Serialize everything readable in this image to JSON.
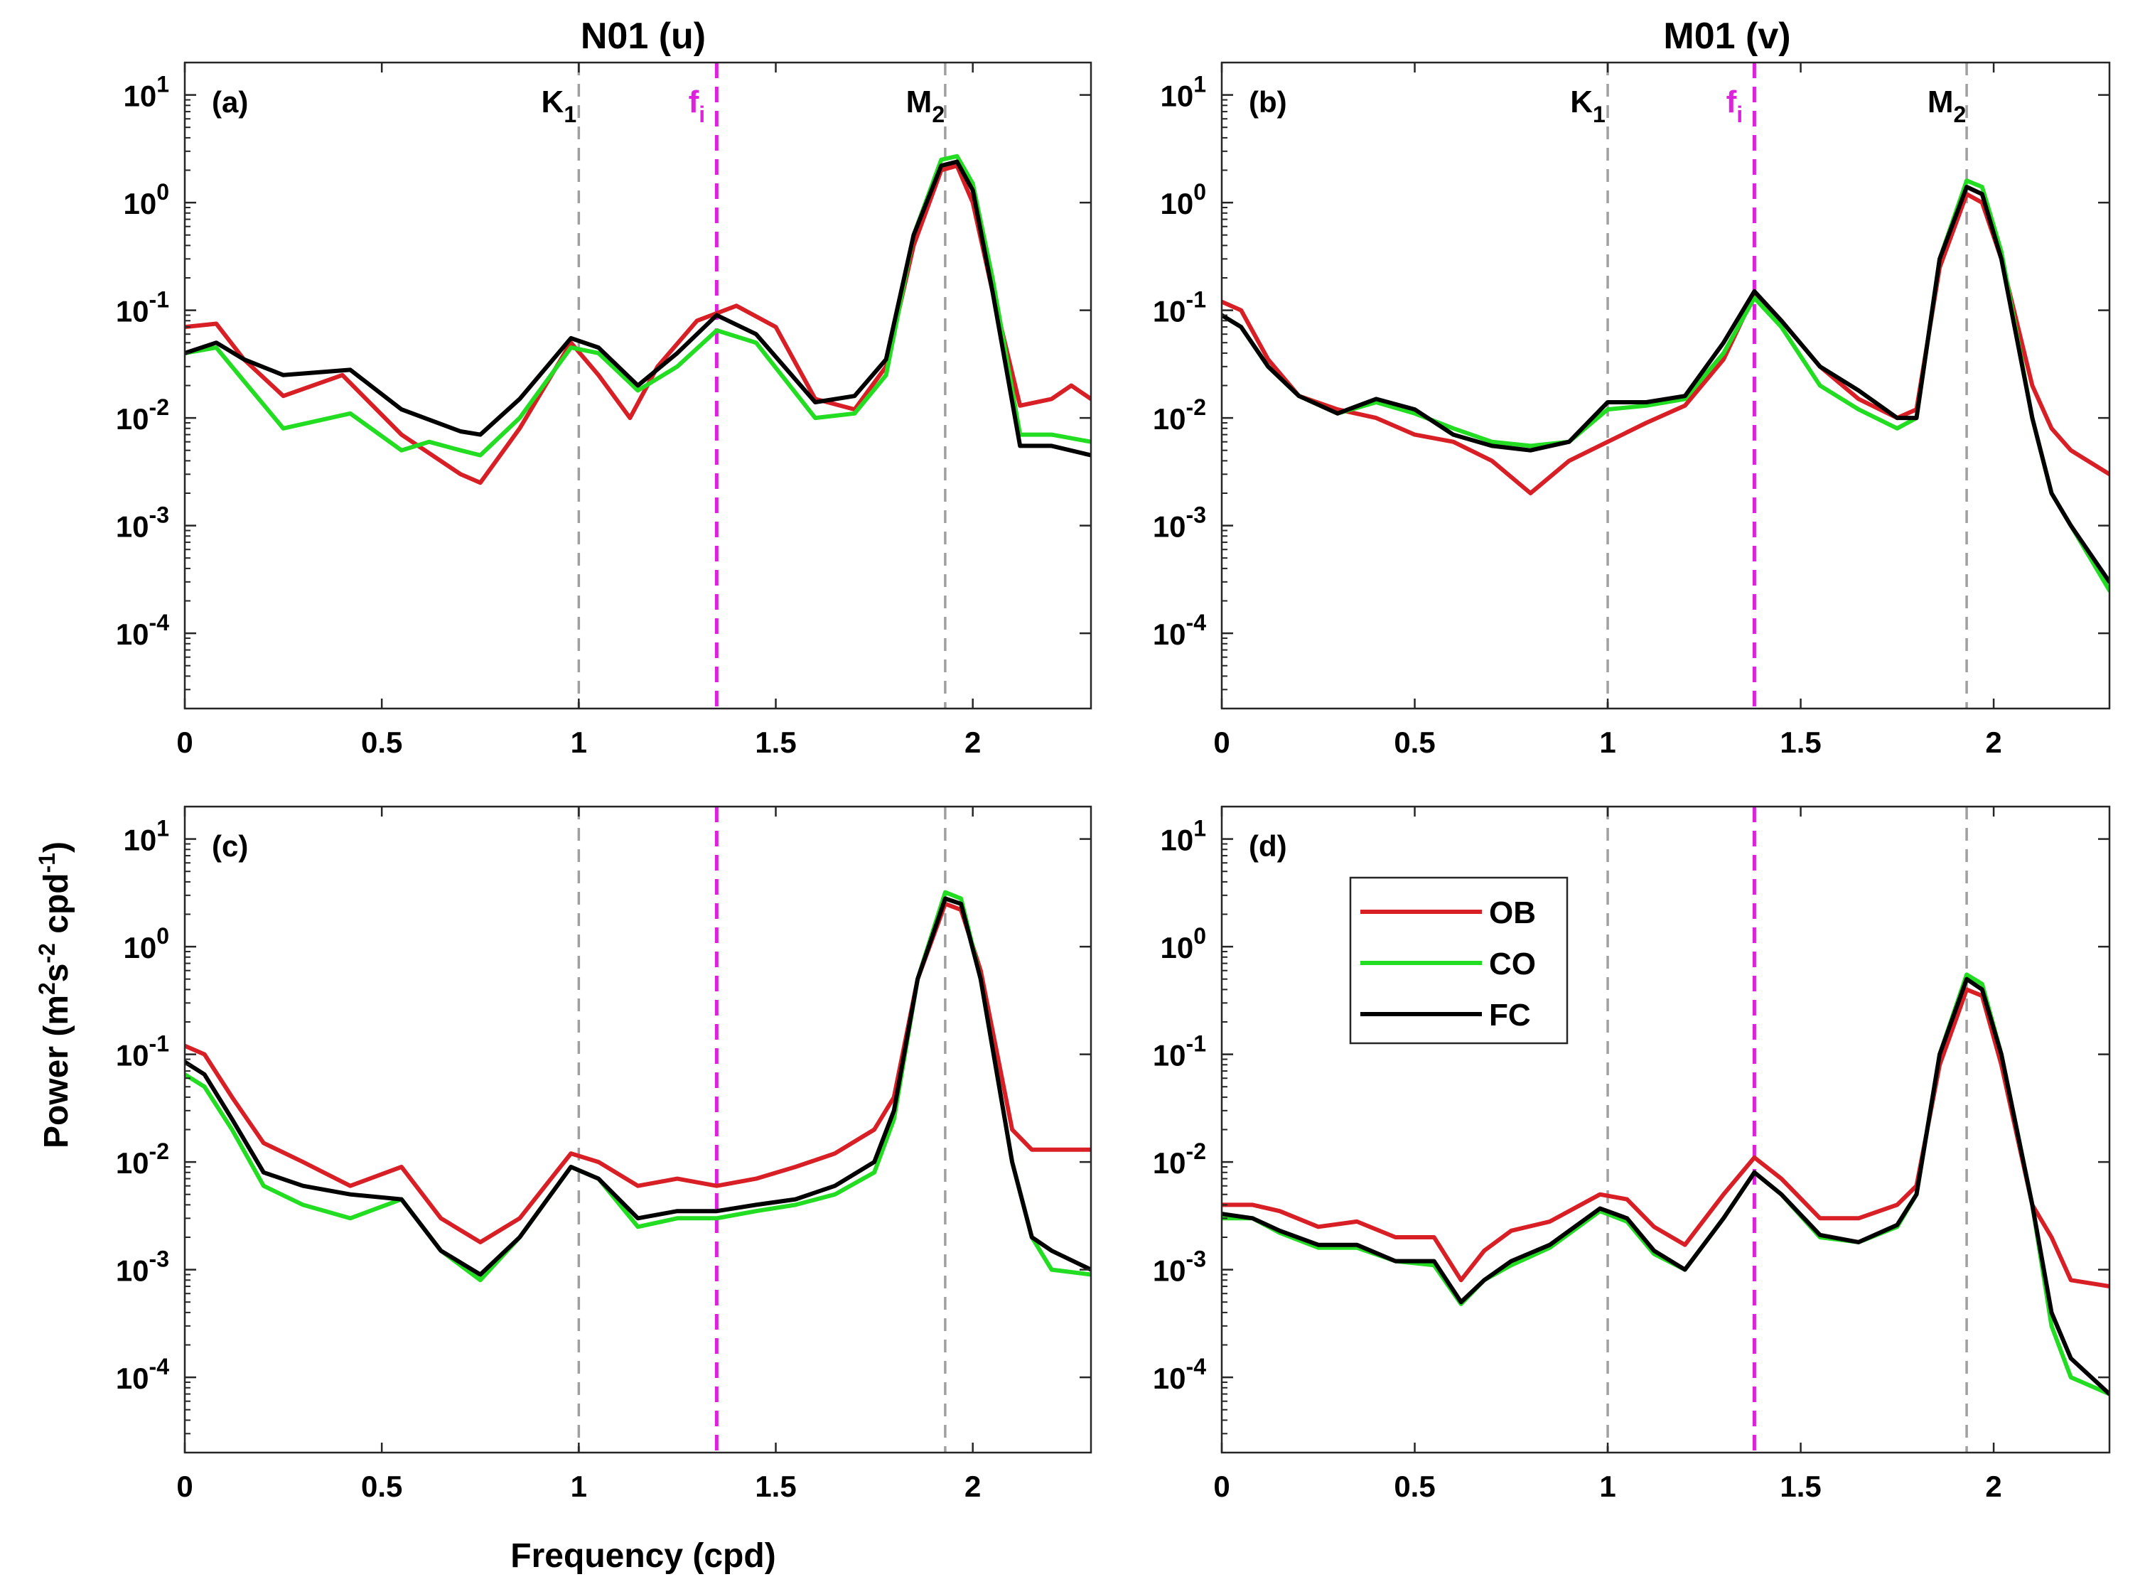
{
  "figure": {
    "column_titles": [
      "N01 (u)",
      "M01 (v)"
    ],
    "xlabel": "Frequency (cpd)",
    "ylabel": {
      "main": "Power (m",
      "sup1": "2",
      "mid1": "s",
      "sup2": "-2",
      "mid2": " cpd",
      "sup3": "-1",
      "end": ")"
    }
  },
  "legend": {
    "entries": [
      {
        "name": "OB",
        "color": "#d91f26"
      },
      {
        "name": "CO",
        "color": "#22dd22"
      },
      {
        "name": "FC",
        "color": "#000000"
      }
    ]
  },
  "colors": {
    "OB": "#d91f26",
    "CO": "#22dd22",
    "FC": "#000000",
    "fi_line": "#dd22dd",
    "tidal_line": "#a0a0a0"
  },
  "chart_data": [
    {
      "type": "line",
      "panel": "(a)",
      "title": "N01 (u)",
      "xlim": [
        0,
        2.3
      ],
      "ylim": [
        2e-05,
        20
      ],
      "yscale": "log",
      "xticks": [
        0,
        0.5,
        1,
        1.5,
        2
      ],
      "xtick_labels": [
        "0",
        "0.5",
        "1",
        "1.5",
        "2"
      ],
      "yticks": [
        -4,
        -3,
        -2,
        -1,
        0,
        1
      ],
      "ytick_labels": [
        "10",
        "10",
        "10",
        "10",
        "10",
        "10"
      ],
      "ytick_exponents": [
        "-4",
        "-3",
        "-2",
        "-1",
        "0",
        "1"
      ],
      "markers": [
        {
          "x": 1.0,
          "label": "K",
          "sub": "1",
          "color": "#a0a0a0"
        },
        {
          "x": 1.35,
          "label": "f",
          "sub": "i",
          "color": "#dd22dd"
        },
        {
          "x": 1.93,
          "label": "M",
          "sub": "2",
          "color": "#a0a0a0"
        }
      ],
      "series": [
        {
          "name": "OB",
          "x": [
            0,
            0.08,
            0.15,
            0.25,
            0.4,
            0.55,
            0.7,
            0.75,
            0.85,
            0.98,
            1.05,
            1.13,
            1.2,
            1.3,
            1.4,
            1.5,
            1.6,
            1.7,
            1.78,
            1.85,
            1.92,
            1.96,
            2.0,
            2.05,
            2.12,
            2.2,
            2.25,
            2.3
          ],
          "y": [
            0.07,
            0.075,
            0.035,
            0.016,
            0.025,
            0.007,
            0.003,
            0.0025,
            0.008,
            0.05,
            0.025,
            0.01,
            0.03,
            0.08,
            0.11,
            0.07,
            0.015,
            0.012,
            0.03,
            0.4,
            2.0,
            2.2,
            1.0,
            0.15,
            0.013,
            0.015,
            0.02,
            0.015
          ]
        },
        {
          "name": "CO",
          "x": [
            0,
            0.08,
            0.15,
            0.25,
            0.42,
            0.55,
            0.62,
            0.7,
            0.75,
            0.85,
            0.98,
            1.05,
            1.15,
            1.25,
            1.35,
            1.45,
            1.6,
            1.7,
            1.78,
            1.85,
            1.92,
            1.96,
            2.0,
            2.05,
            2.12,
            2.2,
            2.3
          ],
          "y": [
            0.04,
            0.045,
            0.022,
            0.008,
            0.011,
            0.005,
            0.006,
            0.005,
            0.0045,
            0.01,
            0.045,
            0.04,
            0.018,
            0.03,
            0.065,
            0.05,
            0.01,
            0.011,
            0.025,
            0.5,
            2.5,
            2.7,
            1.5,
            0.2,
            0.007,
            0.007,
            0.006
          ]
        },
        {
          "name": "FC",
          "x": [
            0,
            0.08,
            0.15,
            0.25,
            0.42,
            0.55,
            0.7,
            0.75,
            0.85,
            0.98,
            1.05,
            1.15,
            1.25,
            1.35,
            1.45,
            1.6,
            1.7,
            1.78,
            1.85,
            1.92,
            1.96,
            2.0,
            2.05,
            2.12,
            2.2,
            2.3
          ],
          "y": [
            0.04,
            0.05,
            0.035,
            0.025,
            0.028,
            0.012,
            0.0075,
            0.007,
            0.015,
            0.055,
            0.045,
            0.02,
            0.04,
            0.09,
            0.06,
            0.014,
            0.016,
            0.035,
            0.5,
            2.2,
            2.4,
            1.3,
            0.15,
            0.0055,
            0.0055,
            0.0045
          ]
        }
      ]
    },
    {
      "type": "line",
      "panel": "(b)",
      "title": "M01 (v)",
      "xlim": [
        0,
        2.3
      ],
      "ylim": [
        2e-05,
        20
      ],
      "yscale": "log",
      "xticks": [
        0,
        0.5,
        1,
        1.5,
        2
      ],
      "xtick_labels": [
        "0",
        "0.5",
        "1",
        "1.5",
        "2"
      ],
      "yticks": [
        -4,
        -3,
        -2,
        -1,
        0,
        1
      ],
      "ytick_labels": [
        "10",
        "10",
        "10",
        "10",
        "10",
        "10"
      ],
      "ytick_exponents": [
        "-4",
        "-3",
        "-2",
        "-1",
        "0",
        "1"
      ],
      "markers": [
        {
          "x": 1.0,
          "label": "K",
          "sub": "1",
          "color": "#a0a0a0"
        },
        {
          "x": 1.38,
          "label": "f",
          "sub": "i",
          "color": "#dd22dd"
        },
        {
          "x": 1.93,
          "label": "M",
          "sub": "2",
          "color": "#a0a0a0"
        }
      ],
      "series": [
        {
          "name": "OB",
          "x": [
            0,
            0.05,
            0.12,
            0.2,
            0.3,
            0.4,
            0.5,
            0.6,
            0.7,
            0.8,
            0.9,
            1.0,
            1.1,
            1.2,
            1.3,
            1.38,
            1.45,
            1.55,
            1.65,
            1.75,
            1.8,
            1.86,
            1.93,
            1.97,
            2.02,
            2.1,
            2.15,
            2.2,
            2.3
          ],
          "y": [
            0.12,
            0.1,
            0.035,
            0.016,
            0.012,
            0.01,
            0.007,
            0.006,
            0.004,
            0.002,
            0.004,
            0.006,
            0.009,
            0.013,
            0.035,
            0.14,
            0.08,
            0.03,
            0.015,
            0.01,
            0.012,
            0.25,
            1.2,
            1.0,
            0.3,
            0.02,
            0.008,
            0.005,
            0.003
          ]
        },
        {
          "name": "CO",
          "x": [
            0,
            0.05,
            0.12,
            0.2,
            0.3,
            0.4,
            0.5,
            0.6,
            0.7,
            0.8,
            0.9,
            1.0,
            1.1,
            1.2,
            1.3,
            1.38,
            1.45,
            1.55,
            1.65,
            1.75,
            1.8,
            1.86,
            1.93,
            1.97,
            2.02,
            2.1,
            2.15,
            2.2,
            2.3
          ],
          "y": [
            0.09,
            0.07,
            0.03,
            0.016,
            0.011,
            0.014,
            0.011,
            0.008,
            0.006,
            0.0055,
            0.006,
            0.012,
            0.013,
            0.015,
            0.04,
            0.13,
            0.07,
            0.02,
            0.012,
            0.008,
            0.01,
            0.3,
            1.6,
            1.4,
            0.35,
            0.01,
            0.002,
            0.001,
            0.00025
          ]
        },
        {
          "name": "FC",
          "x": [
            0,
            0.05,
            0.12,
            0.2,
            0.3,
            0.4,
            0.5,
            0.6,
            0.7,
            0.8,
            0.9,
            1.0,
            1.1,
            1.2,
            1.3,
            1.38,
            1.45,
            1.55,
            1.65,
            1.75,
            1.8,
            1.86,
            1.93,
            1.97,
            2.02,
            2.1,
            2.15,
            2.2,
            2.3
          ],
          "y": [
            0.09,
            0.07,
            0.03,
            0.016,
            0.011,
            0.015,
            0.012,
            0.007,
            0.0055,
            0.005,
            0.006,
            0.014,
            0.014,
            0.016,
            0.05,
            0.15,
            0.08,
            0.03,
            0.018,
            0.01,
            0.01,
            0.3,
            1.4,
            1.2,
            0.3,
            0.01,
            0.002,
            0.001,
            0.0003
          ]
        }
      ]
    },
    {
      "type": "line",
      "panel": "(c)",
      "xlim": [
        0,
        2.3
      ],
      "ylim": [
        2e-05,
        20
      ],
      "yscale": "log",
      "xticks": [
        0,
        0.5,
        1,
        1.5,
        2
      ],
      "xtick_labels": [
        "0",
        "0.5",
        "1",
        "1.5",
        "2"
      ],
      "yticks": [
        -4,
        -3,
        -2,
        -1,
        0,
        1
      ],
      "ytick_labels": [
        "10",
        "10",
        "10",
        "10",
        "10",
        "10"
      ],
      "ytick_exponents": [
        "-4",
        "-3",
        "-2",
        "-1",
        "0",
        "1"
      ],
      "markers": [
        {
          "x": 1.0,
          "color": "#a0a0a0"
        },
        {
          "x": 1.35,
          "color": "#dd22dd"
        },
        {
          "x": 1.93,
          "color": "#a0a0a0"
        }
      ],
      "series": [
        {
          "name": "OB",
          "x": [
            0,
            0.05,
            0.12,
            0.2,
            0.3,
            0.42,
            0.55,
            0.65,
            0.75,
            0.85,
            0.98,
            1.05,
            1.15,
            1.25,
            1.35,
            1.45,
            1.55,
            1.65,
            1.75,
            1.8,
            1.86,
            1.93,
            1.97,
            2.02,
            2.1,
            2.15,
            2.2,
            2.3
          ],
          "y": [
            0.12,
            0.1,
            0.04,
            0.015,
            0.01,
            0.006,
            0.009,
            0.003,
            0.0018,
            0.003,
            0.012,
            0.01,
            0.006,
            0.007,
            0.006,
            0.007,
            0.009,
            0.012,
            0.02,
            0.04,
            0.5,
            2.5,
            2.2,
            0.6,
            0.02,
            0.013,
            0.013,
            0.013
          ]
        },
        {
          "name": "CO",
          "x": [
            0,
            0.05,
            0.12,
            0.2,
            0.3,
            0.42,
            0.55,
            0.65,
            0.75,
            0.85,
            0.98,
            1.05,
            1.15,
            1.25,
            1.35,
            1.45,
            1.55,
            1.65,
            1.75,
            1.8,
            1.86,
            1.93,
            1.97,
            2.02,
            2.1,
            2.15,
            2.2,
            2.3
          ],
          "y": [
            0.065,
            0.05,
            0.02,
            0.006,
            0.004,
            0.003,
            0.0045,
            0.0015,
            0.0008,
            0.002,
            0.009,
            0.007,
            0.0025,
            0.003,
            0.003,
            0.0035,
            0.004,
            0.005,
            0.008,
            0.025,
            0.5,
            3.2,
            2.8,
            0.5,
            0.01,
            0.002,
            0.001,
            0.0009
          ]
        },
        {
          "name": "FC",
          "x": [
            0,
            0.05,
            0.12,
            0.2,
            0.3,
            0.42,
            0.55,
            0.65,
            0.75,
            0.85,
            0.98,
            1.05,
            1.15,
            1.25,
            1.35,
            1.45,
            1.55,
            1.65,
            1.75,
            1.8,
            1.86,
            1.93,
            1.97,
            2.02,
            2.1,
            2.15,
            2.2,
            2.3
          ],
          "y": [
            0.085,
            0.065,
            0.025,
            0.008,
            0.006,
            0.005,
            0.0045,
            0.0015,
            0.0009,
            0.002,
            0.009,
            0.007,
            0.003,
            0.0035,
            0.0035,
            0.004,
            0.0045,
            0.006,
            0.01,
            0.03,
            0.5,
            2.8,
            2.5,
            0.5,
            0.01,
            0.002,
            0.0015,
            0.001
          ]
        }
      ]
    },
    {
      "type": "line",
      "panel": "(d)",
      "xlim": [
        0,
        2.3
      ],
      "ylim": [
        2e-05,
        20
      ],
      "yscale": "log",
      "xticks": [
        0,
        0.5,
        1,
        1.5,
        2
      ],
      "xtick_labels": [
        "0",
        "0.5",
        "1",
        "1.5",
        "2"
      ],
      "yticks": [
        -4,
        -3,
        -2,
        -1,
        0,
        1
      ],
      "ytick_labels": [
        "10",
        "10",
        "10",
        "10",
        "10",
        "10"
      ],
      "ytick_exponents": [
        "-4",
        "-3",
        "-2",
        "-1",
        "0",
        "1"
      ],
      "markers": [
        {
          "x": 1.0,
          "color": "#a0a0a0"
        },
        {
          "x": 1.38,
          "color": "#dd22dd"
        },
        {
          "x": 1.93,
          "color": "#a0a0a0"
        }
      ],
      "series": [
        {
          "name": "OB",
          "x": [
            0,
            0.08,
            0.15,
            0.25,
            0.35,
            0.45,
            0.55,
            0.62,
            0.68,
            0.75,
            0.85,
            0.98,
            1.05,
            1.12,
            1.2,
            1.3,
            1.38,
            1.45,
            1.55,
            1.65,
            1.75,
            1.8,
            1.86,
            1.93,
            1.97,
            2.02,
            2.1,
            2.15,
            2.2,
            2.3
          ],
          "y": [
            0.004,
            0.004,
            0.0035,
            0.0025,
            0.0028,
            0.002,
            0.002,
            0.0008,
            0.0015,
            0.0023,
            0.0028,
            0.005,
            0.0045,
            0.0025,
            0.0017,
            0.005,
            0.011,
            0.007,
            0.003,
            0.003,
            0.004,
            0.006,
            0.08,
            0.4,
            0.35,
            0.08,
            0.004,
            0.002,
            0.0008,
            0.0007
          ]
        },
        {
          "name": "CO",
          "x": [
            0,
            0.08,
            0.15,
            0.25,
            0.35,
            0.45,
            0.55,
            0.62,
            0.68,
            0.75,
            0.85,
            0.98,
            1.05,
            1.12,
            1.2,
            1.3,
            1.38,
            1.45,
            1.55,
            1.65,
            1.75,
            1.8,
            1.86,
            1.93,
            1.97,
            2.02,
            2.1,
            2.15,
            2.2,
            2.3
          ],
          "y": [
            0.003,
            0.003,
            0.0022,
            0.0016,
            0.0016,
            0.0012,
            0.0011,
            0.00048,
            0.0008,
            0.0011,
            0.0016,
            0.0035,
            0.0028,
            0.0014,
            0.001,
            0.003,
            0.008,
            0.005,
            0.002,
            0.0018,
            0.0025,
            0.005,
            0.1,
            0.55,
            0.45,
            0.1,
            0.004,
            0.0003,
            0.0001,
            7e-05
          ]
        },
        {
          "name": "FC",
          "x": [
            0,
            0.08,
            0.15,
            0.25,
            0.35,
            0.45,
            0.55,
            0.62,
            0.68,
            0.75,
            0.85,
            0.98,
            1.05,
            1.12,
            1.2,
            1.3,
            1.38,
            1.45,
            1.55,
            1.65,
            1.75,
            1.8,
            1.86,
            1.93,
            1.97,
            2.02,
            2.1,
            2.15,
            2.2,
            2.3
          ],
          "y": [
            0.0033,
            0.003,
            0.0023,
            0.0017,
            0.0017,
            0.0012,
            0.0012,
            0.0005,
            0.0008,
            0.0012,
            0.0017,
            0.0037,
            0.003,
            0.0015,
            0.001,
            0.003,
            0.008,
            0.005,
            0.0021,
            0.0018,
            0.0026,
            0.005,
            0.1,
            0.5,
            0.4,
            0.1,
            0.004,
            0.0004,
            0.00015,
            7e-05
          ]
        }
      ]
    }
  ]
}
